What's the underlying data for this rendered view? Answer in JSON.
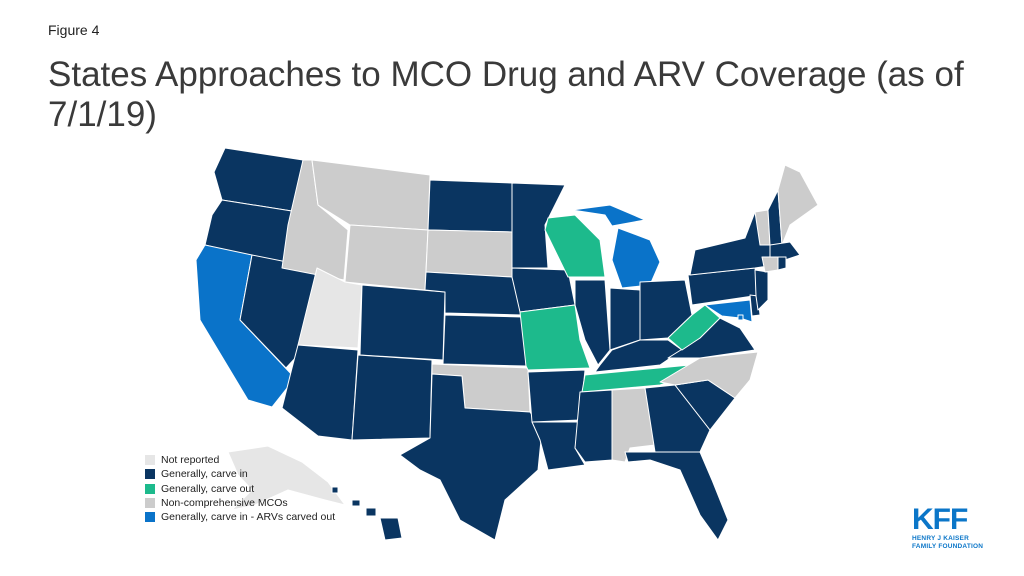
{
  "figure_label": "Figure 4",
  "title": "States Approaches to MCO Drug and ARV Coverage (as of 7/1/19)",
  "colors": {
    "not_reported": "#e6e6e6",
    "carve_in": "#0a3561",
    "carve_out": "#1dba8c",
    "non_comprehensive": "#cccccc",
    "arvs_carved_out": "#0a73c9"
  },
  "legend": [
    {
      "key": "not_reported",
      "label": "Not reported"
    },
    {
      "key": "carve_in",
      "label": "Generally, carve in"
    },
    {
      "key": "carve_out",
      "label": "Generally, carve out"
    },
    {
      "key": "non_comprehensive",
      "label": "Non-comprehensive MCOs"
    },
    {
      "key": "arvs_carved_out",
      "label": "Generally, carve in - ARVs carved out"
    }
  ],
  "map_data": {
    "states": [
      {
        "id": "WA",
        "category": "carve_in"
      },
      {
        "id": "OR",
        "category": "carve_in"
      },
      {
        "id": "CA",
        "category": "arvs_carved_out"
      },
      {
        "id": "NV",
        "category": "carve_in"
      },
      {
        "id": "ID",
        "category": "non_comprehensive"
      },
      {
        "id": "MT",
        "category": "non_comprehensive"
      },
      {
        "id": "WY",
        "category": "non_comprehensive"
      },
      {
        "id": "UT",
        "category": "not_reported"
      },
      {
        "id": "AZ",
        "category": "carve_in"
      },
      {
        "id": "CO",
        "category": "carve_in"
      },
      {
        "id": "NM",
        "category": "carve_in"
      },
      {
        "id": "ND",
        "category": "carve_in"
      },
      {
        "id": "SD",
        "category": "non_comprehensive"
      },
      {
        "id": "NE",
        "category": "carve_in"
      },
      {
        "id": "KS",
        "category": "carve_in"
      },
      {
        "id": "OK",
        "category": "non_comprehensive"
      },
      {
        "id": "TX",
        "category": "carve_in"
      },
      {
        "id": "MN",
        "category": "carve_in"
      },
      {
        "id": "IA",
        "category": "carve_in"
      },
      {
        "id": "MO",
        "category": "carve_out"
      },
      {
        "id": "AR",
        "category": "carve_in"
      },
      {
        "id": "LA",
        "category": "carve_in"
      },
      {
        "id": "WI",
        "category": "carve_out"
      },
      {
        "id": "IL",
        "category": "carve_in"
      },
      {
        "id": "MI",
        "category": "arvs_carved_out"
      },
      {
        "id": "IN",
        "category": "carve_in"
      },
      {
        "id": "OH",
        "category": "carve_in"
      },
      {
        "id": "KY",
        "category": "carve_in"
      },
      {
        "id": "TN",
        "category": "carve_out"
      },
      {
        "id": "MS",
        "category": "carve_in"
      },
      {
        "id": "AL",
        "category": "non_comprehensive"
      },
      {
        "id": "GA",
        "category": "carve_in"
      },
      {
        "id": "FL",
        "category": "carve_in"
      },
      {
        "id": "SC",
        "category": "carve_in"
      },
      {
        "id": "NC",
        "category": "non_comprehensive"
      },
      {
        "id": "VA",
        "category": "carve_in"
      },
      {
        "id": "WV",
        "category": "carve_out"
      },
      {
        "id": "PA",
        "category": "carve_in"
      },
      {
        "id": "NY",
        "category": "carve_in"
      },
      {
        "id": "VT",
        "category": "non_comprehensive"
      },
      {
        "id": "NH",
        "category": "carve_in"
      },
      {
        "id": "ME",
        "category": "non_comprehensive"
      },
      {
        "id": "MA",
        "category": "carve_in"
      },
      {
        "id": "CT",
        "category": "non_comprehensive"
      },
      {
        "id": "RI",
        "category": "carve_in"
      },
      {
        "id": "NJ",
        "category": "carve_in"
      },
      {
        "id": "DE",
        "category": "carve_in"
      },
      {
        "id": "MD",
        "category": "arvs_carved_out"
      },
      {
        "id": "DC",
        "category": "arvs_carved_out"
      },
      {
        "id": "AK",
        "category": "not_reported"
      },
      {
        "id": "HI",
        "category": "carve_in"
      }
    ]
  },
  "logo": {
    "main": "KFF",
    "line1": "HENRY J KAISER",
    "line2": "FAMILY FOUNDATION"
  }
}
